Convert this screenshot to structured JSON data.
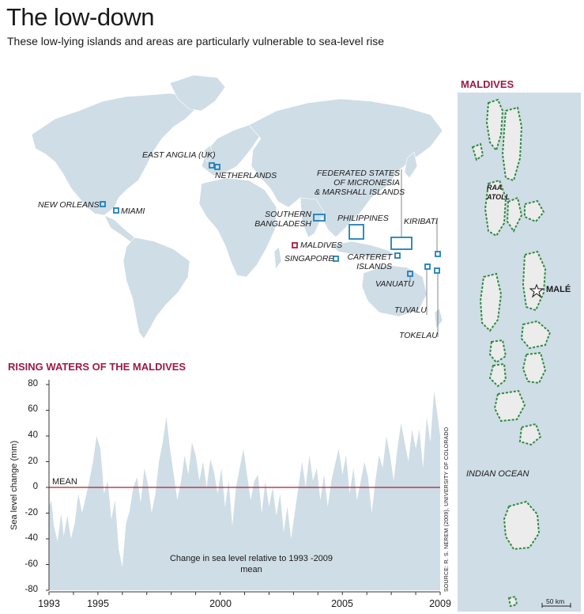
{
  "header": {
    "title": "The low-down",
    "subtitle": "These low-lying islands and areas are particularly vulnerable to sea-level rise"
  },
  "world_map": {
    "labels": {
      "east_anglia": "EAST ANGLIA (UK)",
      "netherlands": "NETHERLANDS",
      "new_orleans": "NEW ORLEANS",
      "miami": "MIAMI",
      "micronesia_line1": "FEDERATED STATES",
      "micronesia_line2": "OF MICRONESIA",
      "micronesia_line3": "& MARSHALL ISLANDS",
      "bangladesh_line1": "SOUTHERN",
      "bangladesh_line2": "BANGLADESH",
      "philippines": "PHILIPPINES",
      "kiribati": "KIRIBATI",
      "maldives": "MALDIVES",
      "singapore": "SINGAPORE",
      "carteret_line1": "CARTERET",
      "carteret_line2": "ISLANDS",
      "vanuatu": "VANUATU",
      "tuvalu": "TUVALU",
      "tokelau": "TOKELAU"
    },
    "colors": {
      "land": "#cfdde6",
      "marker": "#1f7fb8",
      "highlight": "#b01b3c"
    }
  },
  "maldives_map": {
    "heading": "MALDIVES",
    "raa_line1": "RAA",
    "raa_line2": "ATOLL",
    "capital": "MALÉ",
    "ocean": "INDIAN OCEAN",
    "scale": "50 km",
    "colors": {
      "background": "#cfdde6",
      "atoll_fill": "#ececec",
      "reef": "#2e8b3e"
    }
  },
  "chart_data": {
    "type": "area",
    "title": "RISING WATERS OF THE MALDIVES",
    "ylabel": "Sea level change (mm)",
    "xlabel": "",
    "ylim": [
      -80,
      80
    ],
    "xlim": [
      1993,
      2009
    ],
    "y_ticks": [
      "80",
      "60",
      "40",
      "20",
      "0",
      "-20",
      "-40",
      "-60",
      "-80"
    ],
    "x_ticks": [
      "1993",
      "1995",
      "2000",
      "2005",
      "2009"
    ],
    "reference_line": {
      "label": "MEAN",
      "value": 0
    },
    "annotation": "Change in sea level relative to 1993 -2009 mean",
    "source": "SOURCE: R. S. NEREM (2009), UNIVERSITY OF COLORADO",
    "series": [
      {
        "name": "Sea level change",
        "points": [
          [
            1993.0,
            -15
          ],
          [
            1993.1,
            -10
          ],
          [
            1993.2,
            -30
          ],
          [
            1993.35,
            -42
          ],
          [
            1993.5,
            -20
          ],
          [
            1993.6,
            -38
          ],
          [
            1993.75,
            -22
          ],
          [
            1993.9,
            -40
          ],
          [
            1994.05,
            -28
          ],
          [
            1994.2,
            -5
          ],
          [
            1994.35,
            -20
          ],
          [
            1994.5,
            -8
          ],
          [
            1994.65,
            5
          ],
          [
            1994.8,
            20
          ],
          [
            1994.95,
            40
          ],
          [
            1995.1,
            30
          ],
          [
            1995.25,
            -5
          ],
          [
            1995.4,
            5
          ],
          [
            1995.55,
            -25
          ],
          [
            1995.7,
            -10
          ],
          [
            1995.85,
            -48
          ],
          [
            1996.0,
            -62
          ],
          [
            1996.15,
            -28
          ],
          [
            1996.3,
            -18
          ],
          [
            1996.45,
            0
          ],
          [
            1996.6,
            8
          ],
          [
            1996.75,
            -12
          ],
          [
            1996.9,
            15
          ],
          [
            1997.05,
            2
          ],
          [
            1997.2,
            -20
          ],
          [
            1997.35,
            -5
          ],
          [
            1997.5,
            20
          ],
          [
            1997.65,
            35
          ],
          [
            1997.8,
            55
          ],
          [
            1997.95,
            30
          ],
          [
            1998.1,
            10
          ],
          [
            1998.25,
            -10
          ],
          [
            1998.4,
            5
          ],
          [
            1998.55,
            25
          ],
          [
            1998.7,
            10
          ],
          [
            1998.85,
            35
          ],
          [
            1999.0,
            25
          ],
          [
            1999.15,
            5
          ],
          [
            1999.3,
            20
          ],
          [
            1999.45,
            0
          ],
          [
            1999.6,
            22
          ],
          [
            1999.75,
            12
          ],
          [
            1999.9,
            -5
          ],
          [
            2000.05,
            15
          ],
          [
            2000.2,
            -15
          ],
          [
            2000.35,
            5
          ],
          [
            2000.5,
            -30
          ],
          [
            2000.65,
            0
          ],
          [
            2000.8,
            15
          ],
          [
            2000.95,
            30
          ],
          [
            2001.1,
            10
          ],
          [
            2001.25,
            -10
          ],
          [
            2001.4,
            5
          ],
          [
            2001.55,
            10
          ],
          [
            2001.7,
            -20
          ],
          [
            2001.85,
            5
          ],
          [
            2002.0,
            -15
          ],
          [
            2002.15,
            0
          ],
          [
            2002.3,
            -22
          ],
          [
            2002.45,
            -5
          ],
          [
            2002.6,
            -35
          ],
          [
            2002.75,
            -15
          ],
          [
            2002.9,
            -40
          ],
          [
            2003.05,
            -20
          ],
          [
            2003.2,
            0
          ],
          [
            2003.35,
            20
          ],
          [
            2003.5,
            0
          ],
          [
            2003.65,
            25
          ],
          [
            2003.8,
            5
          ],
          [
            2003.95,
            15
          ],
          [
            2004.1,
            -10
          ],
          [
            2004.25,
            10
          ],
          [
            2004.4,
            -15
          ],
          [
            2004.55,
            5
          ],
          [
            2004.7,
            18
          ],
          [
            2004.85,
            30
          ],
          [
            2005.0,
            10
          ],
          [
            2005.15,
            25
          ],
          [
            2005.3,
            -5
          ],
          [
            2005.45,
            15
          ],
          [
            2005.6,
            -10
          ],
          [
            2005.75,
            5
          ],
          [
            2005.9,
            20
          ],
          [
            2006.05,
            8
          ],
          [
            2006.2,
            -20
          ],
          [
            2006.35,
            5
          ],
          [
            2006.5,
            25
          ],
          [
            2006.65,
            15
          ],
          [
            2006.8,
            40
          ],
          [
            2006.95,
            25
          ],
          [
            2007.1,
            5
          ],
          [
            2007.25,
            30
          ],
          [
            2007.4,
            50
          ],
          [
            2007.55,
            35
          ],
          [
            2007.7,
            20
          ],
          [
            2007.85,
            45
          ],
          [
            2008.0,
            30
          ],
          [
            2008.15,
            45
          ],
          [
            2008.3,
            15
          ],
          [
            2008.45,
            55
          ],
          [
            2008.6,
            35
          ],
          [
            2008.75,
            75
          ],
          [
            2008.9,
            55
          ],
          [
            2009.0,
            40
          ]
        ]
      }
    ],
    "colors": {
      "area": "#cfdde6",
      "mean_line": "#b01b3c",
      "title": "#9b1b46"
    }
  }
}
